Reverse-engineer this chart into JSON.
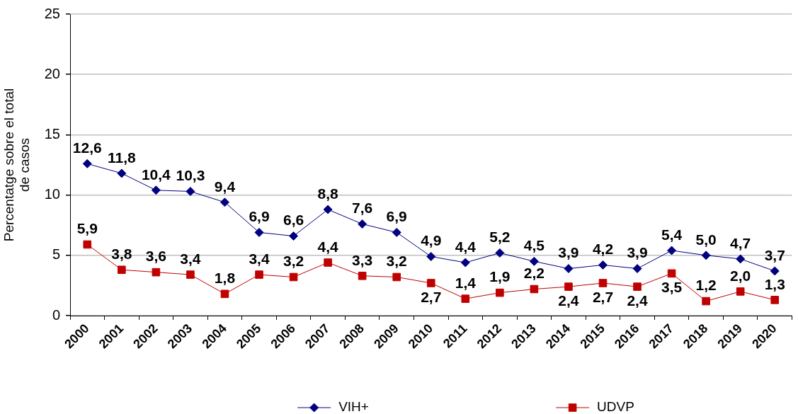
{
  "chart_data": {
    "type": "line",
    "ylabel": "Percentatge sobre el total de casos",
    "categories": [
      "2000",
      "2001",
      "2002",
      "2003",
      "2004",
      "2005",
      "2006",
      "2007",
      "2008",
      "2009",
      "2010",
      "2011",
      "2012",
      "2013",
      "2014",
      "2015",
      "2016",
      "2017",
      "2018",
      "2019",
      "2020"
    ],
    "series": [
      {
        "name": "VIH+",
        "color": "#000080",
        "marker": "diamond",
        "values": [
          12.6,
          11.8,
          10.4,
          10.3,
          9.4,
          6.9,
          6.6,
          8.8,
          7.6,
          6.9,
          4.9,
          4.4,
          5.2,
          4.5,
          3.9,
          4.2,
          3.9,
          5.4,
          5.0,
          4.7,
          3.7
        ],
        "value_labels": [
          "12,6",
          "11,8",
          "10,4",
          "10,3",
          "9,4",
          "6,9",
          "6,6",
          "8,8",
          "7,6",
          "6,9",
          "4,9",
          "4,4",
          "5,2",
          "4,5",
          "3,9",
          "4,2",
          "3,9",
          "5,4",
          "5,0",
          "4,7",
          "3,7"
        ]
      },
      {
        "name": "UDVP",
        "color": "#c00000",
        "marker": "square",
        "values": [
          5.9,
          3.8,
          3.6,
          3.4,
          1.8,
          3.4,
          3.2,
          4.4,
          3.3,
          3.2,
          2.7,
          1.4,
          1.9,
          2.2,
          2.4,
          2.7,
          2.4,
          3.5,
          1.2,
          2.0,
          1.3
        ],
        "value_labels": [
          "5,9",
          "3,8",
          "3,6",
          "3,4",
          "1,8",
          "3,4",
          "3,2",
          "4,4",
          "3,3",
          "3,2",
          "2,7",
          "1,4",
          "1,9",
          "2,2",
          "2,4",
          "2,7",
          "2,4",
          "3,5",
          "1,2",
          "2,0",
          "1,3"
        ]
      }
    ],
    "ylim": [
      0,
      25
    ],
    "yticks": [
      0,
      5,
      10,
      15,
      20,
      25
    ],
    "grid": "y",
    "legend": "bottom"
  }
}
